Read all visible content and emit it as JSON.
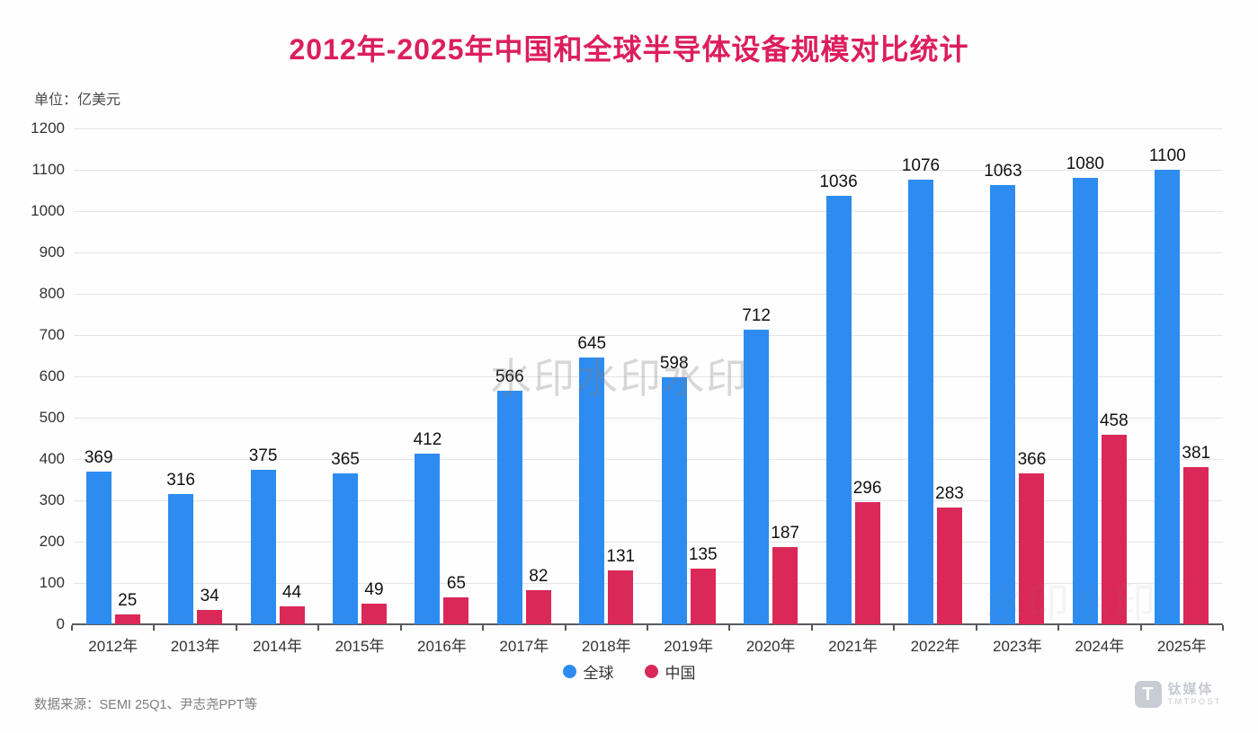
{
  "title": "2012年-2025年中国和全球半导体设备规模对比统计",
  "unit_label": "单位：亿美元",
  "source": "数据来源：SEMI 25Q1、尹志尧PPT等",
  "watermark": {
    "primary": "水印水印水印",
    "secondary": "水印水印"
  },
  "logo": {
    "badge": "T",
    "cn": "钛媒体",
    "en": "TMTPOST"
  },
  "colors": {
    "global": "#2e8cf0",
    "china": "#da2958",
    "title": "#dc1e5f",
    "gridline": "#e4e4e8",
    "axis": "#595c61",
    "label_text": "#111111"
  },
  "chart_data": {
    "type": "bar",
    "title": "2012年-2025年中国和全球半导体设备规模对比统计",
    "ylabel": "亿美元",
    "xlabel": "",
    "categories": [
      "2012年",
      "2013年",
      "2014年",
      "2015年",
      "2016年",
      "2017年",
      "2018年",
      "2019年",
      "2020年",
      "2021年",
      "2022年",
      "2023年",
      "2024年",
      "2025年"
    ],
    "series": [
      {
        "name": "全球",
        "color_key": "global",
        "values": [
          369,
          316,
          375,
          365,
          412,
          566,
          645,
          598,
          712,
          1036,
          1076,
          1063,
          1080,
          1100
        ]
      },
      {
        "name": "中国",
        "color_key": "china",
        "values": [
          25,
          34,
          44,
          49,
          65,
          82,
          131,
          135,
          187,
          296,
          283,
          366,
          458,
          381
        ]
      }
    ],
    "ylim": [
      0,
      1200
    ],
    "ytick_step": 100,
    "yticks": [
      0,
      100,
      200,
      300,
      400,
      500,
      600,
      700,
      800,
      900,
      1000,
      1100,
      1200
    ],
    "grid": true,
    "legend_position": "bottom",
    "data_labels": true
  }
}
